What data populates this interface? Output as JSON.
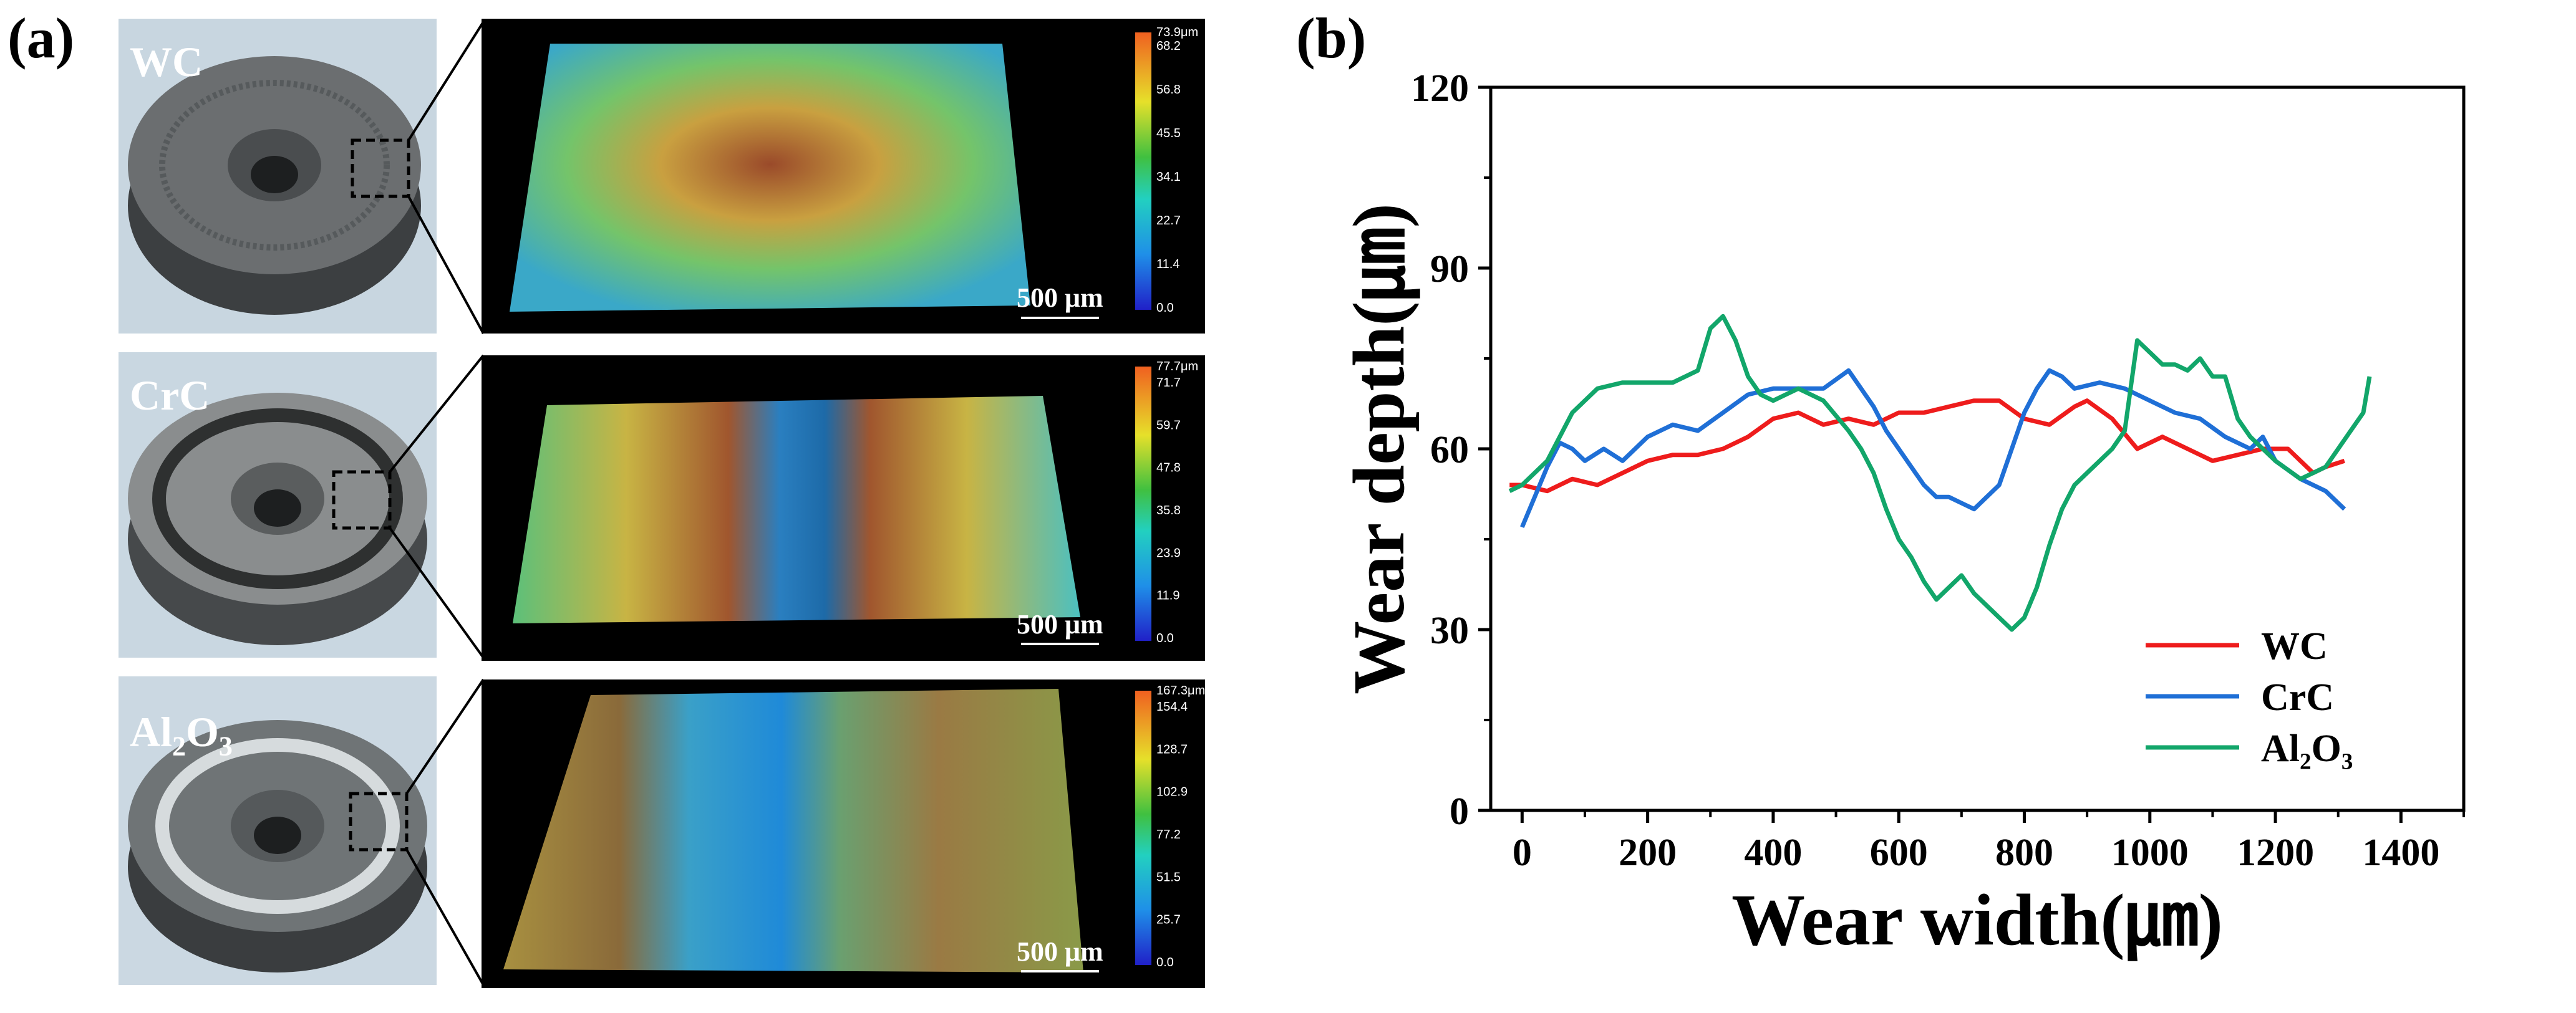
{
  "panels": {
    "a_label": "(a)",
    "b_label": "(b)"
  },
  "samples": [
    {
      "name": "WC",
      "sub": "",
      "cbar_max": "73.9μm",
      "cbar_ticks": [
        "68.2",
        "56.8",
        "45.5",
        "34.1",
        "22.7",
        "11.4",
        "0.0"
      ],
      "scale": "500 μm"
    },
    {
      "name": "CrC",
      "sub": "",
      "cbar_max": "77.7μm",
      "cbar_ticks": [
        "71.7",
        "59.7",
        "47.8",
        "35.8",
        "23.9",
        "11.9",
        "0.0"
      ],
      "scale": "500 μm"
    },
    {
      "name": "Al",
      "sub": "2",
      "name2": "O",
      "sub2": "3",
      "cbar_max": "167.3μm",
      "cbar_ticks": [
        "154.4",
        "128.7",
        "102.9",
        "77.2",
        "51.5",
        "25.7",
        "0.0"
      ],
      "scale": "500 μm"
    }
  ],
  "chart_data": {
    "type": "line",
    "xlabel": "Wear width(㎛)",
    "ylabel": "Wear depth(㎛)",
    "xlim": [
      -50,
      1500
    ],
    "ylim": [
      0,
      120
    ],
    "xticks": [
      0,
      200,
      400,
      600,
      800,
      1000,
      1200,
      1400
    ],
    "yticks": [
      0,
      30,
      60,
      90,
      120
    ],
    "legend_position": "bottom-right",
    "series": [
      {
        "name": "WC",
        "color": "#ee1c1c",
        "x": [
          -20,
          0,
          40,
          80,
          120,
          160,
          200,
          240,
          280,
          320,
          360,
          400,
          440,
          480,
          520,
          560,
          600,
          640,
          680,
          720,
          760,
          800,
          840,
          880,
          900,
          940,
          980,
          1020,
          1060,
          1100,
          1140,
          1180,
          1220,
          1260,
          1280,
          1310
        ],
        "y": [
          54,
          54,
          53,
          55,
          54,
          56,
          58,
          59,
          59,
          60,
          62,
          65,
          66,
          64,
          65,
          64,
          66,
          66,
          67,
          68,
          68,
          65,
          64,
          67,
          68,
          65,
          60,
          62,
          60,
          58,
          59,
          60,
          60,
          56,
          57,
          58
        ]
      },
      {
        "name": "CrC",
        "color": "#1f6fd6",
        "x": [
          0,
          20,
          40,
          60,
          80,
          100,
          130,
          160,
          200,
          240,
          280,
          320,
          360,
          400,
          440,
          480,
          520,
          540,
          560,
          580,
          600,
          620,
          640,
          660,
          680,
          700,
          720,
          740,
          760,
          780,
          800,
          820,
          840,
          860,
          880,
          920,
          960,
          1000,
          1040,
          1080,
          1120,
          1160,
          1180,
          1200,
          1240,
          1280,
          1310
        ],
        "y": [
          47,
          52,
          57,
          61,
          60,
          58,
          60,
          58,
          62,
          64,
          63,
          66,
          69,
          70,
          70,
          70,
          73,
          70,
          67,
          63,
          60,
          57,
          54,
          52,
          52,
          51,
          50,
          52,
          54,
          60,
          66,
          70,
          73,
          72,
          70,
          71,
          70,
          68,
          66,
          65,
          62,
          60,
          62,
          58,
          55,
          53,
          50
        ]
      },
      {
        "name": "Al₂O₃",
        "color": "#12a66a",
        "x": [
          -20,
          0,
          40,
          80,
          120,
          160,
          200,
          240,
          280,
          300,
          320,
          340,
          360,
          380,
          400,
          440,
          480,
          520,
          540,
          560,
          580,
          600,
          620,
          640,
          660,
          680,
          700,
          720,
          740,
          760,
          780,
          800,
          820,
          840,
          860,
          880,
          900,
          920,
          940,
          960,
          980,
          1000,
          1020,
          1040,
          1060,
          1080,
          1100,
          1120,
          1140,
          1160,
          1180,
          1200,
          1240,
          1260,
          1280,
          1300,
          1320,
          1340,
          1350
        ],
        "y": [
          53,
          54,
          58,
          66,
          70,
          71,
          71,
          71,
          73,
          80,
          82,
          78,
          72,
          69,
          68,
          70,
          68,
          63,
          60,
          56,
          50,
          45,
          42,
          38,
          35,
          37,
          39,
          36,
          34,
          32,
          30,
          32,
          37,
          44,
          50,
          54,
          56,
          58,
          60,
          63,
          78,
          76,
          74,
          74,
          73,
          75,
          72,
          72,
          65,
          62,
          60,
          58,
          55,
          56,
          57,
          60,
          63,
          66,
          72
        ]
      }
    ]
  }
}
